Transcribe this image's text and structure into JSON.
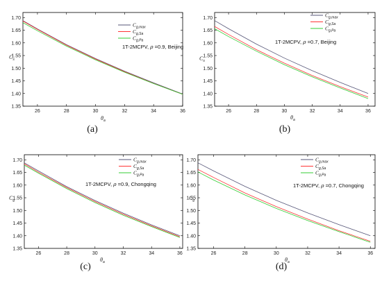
{
  "chart_data": [
    {
      "type": "line",
      "panel_label": "(a)",
      "annotation": {
        "prefix": "1T-2MCPV, ",
        "rho": "ρ",
        "rest": " =0.9, Beijing"
      },
      "xlabel": {
        "main": "θ",
        "sub": "a"
      },
      "ylabel": {
        "main": "C",
        "sub": "s"
      },
      "xlim": [
        25,
        36
      ],
      "ylim": [
        1.35,
        1.72
      ],
      "xticks": [
        26,
        28,
        30,
        32,
        34,
        36
      ],
      "yticks": [
        1.35,
        1.4,
        1.45,
        1.5,
        1.55,
        1.6,
        1.65,
        1.7
      ],
      "x": [
        25,
        26,
        28,
        30,
        32,
        34,
        36
      ],
      "series": [
        {
          "name_main": "C",
          "name_sub": "g,max",
          "color": "#555577",
          "values": [
            1.688,
            1.655,
            1.593,
            1.538,
            1.488,
            1.442,
            1.398
          ]
        },
        {
          "name_main": "C",
          "name_sub": "g,Sa",
          "color": "#ff3333",
          "values": [
            1.686,
            1.653,
            1.591,
            1.536,
            1.486,
            1.44,
            1.397
          ]
        },
        {
          "name_main": "C",
          "name_sub": "g,Pa",
          "color": "#33cc33",
          "values": [
            1.68,
            1.648,
            1.587,
            1.533,
            1.484,
            1.439,
            1.397
          ]
        }
      ]
    },
    {
      "type": "line",
      "panel_label": "(b)",
      "annotation": {
        "prefix": "1T-2MCPV, ",
        "rho": "ρ",
        "rest": " =0.7, Beijing"
      },
      "xlabel": {
        "main": "θ",
        "sub": "a"
      },
      "ylabel": {
        "main": "C",
        "sub": "s"
      },
      "xlim": [
        25,
        36.5
      ],
      "ylim": [
        1.35,
        1.72
      ],
      "xticks": [
        26,
        28,
        30,
        32,
        34,
        36
      ],
      "yticks": [
        1.35,
        1.4,
        1.45,
        1.5,
        1.55,
        1.6,
        1.65,
        1.7
      ],
      "x": [
        25,
        26,
        28,
        30,
        32,
        34,
        36
      ],
      "series": [
        {
          "name_main": "C",
          "name_sub": "g,max",
          "color": "#555577",
          "values": [
            1.688,
            1.656,
            1.595,
            1.54,
            1.49,
            1.444,
            1.4
          ]
        },
        {
          "name_main": "C",
          "name_sub": "g,Sa",
          "color": "#ff3333",
          "values": [
            1.665,
            1.633,
            1.573,
            1.52,
            1.471,
            1.427,
            1.386
          ]
        },
        {
          "name_main": "C",
          "name_sub": "g,Pa",
          "color": "#33cc33",
          "values": [
            1.656,
            1.625,
            1.567,
            1.514,
            1.466,
            1.422,
            1.38
          ]
        }
      ]
    },
    {
      "type": "line",
      "panel_label": "(c)",
      "annotation": {
        "prefix": "1T-2MCPV, ",
        "rho": "ρ",
        "rest": " =0.9, Chongqing"
      },
      "xlabel": {
        "main": "θ",
        "sub": "a"
      },
      "ylabel": {
        "main": "C",
        "sub": "g"
      },
      "xlim": [
        25,
        36.2
      ],
      "ylim": [
        1.35,
        1.72
      ],
      "xticks": [
        26,
        28,
        30,
        32,
        34,
        36
      ],
      "yticks": [
        1.35,
        1.4,
        1.45,
        1.5,
        1.55,
        1.6,
        1.65,
        1.7
      ],
      "x": [
        25,
        26,
        28,
        30,
        32,
        34,
        36
      ],
      "series": [
        {
          "name_main": "C",
          "name_sub": "g,max",
          "color": "#555577",
          "values": [
            1.688,
            1.656,
            1.594,
            1.539,
            1.489,
            1.443,
            1.4
          ]
        },
        {
          "name_main": "C",
          "name_sub": "g,Sa",
          "color": "#ff3333",
          "values": [
            1.684,
            1.651,
            1.59,
            1.535,
            1.485,
            1.439,
            1.396
          ]
        },
        {
          "name_main": "C",
          "name_sub": "g,Pa",
          "color": "#33cc33",
          "values": [
            1.679,
            1.647,
            1.586,
            1.531,
            1.481,
            1.436,
            1.393
          ]
        }
      ]
    },
    {
      "type": "line",
      "panel_label": "(d)",
      "annotation": {
        "prefix": "1T-2MCPV, ",
        "rho": "ρ",
        "rest": " =0.7, Chongqing"
      },
      "xlabel": {
        "main": "θ",
        "sub": "a"
      },
      "ylabel": {
        "main": "C",
        "sub": "g"
      },
      "xlim": [
        25,
        36.3
      ],
      "ylim": [
        1.35,
        1.72
      ],
      "xticks": [
        26,
        28,
        30,
        32,
        34,
        36
      ],
      "yticks": [
        1.35,
        1.4,
        1.45,
        1.5,
        1.55,
        1.6,
        1.65,
        1.7
      ],
      "x": [
        25,
        26,
        28,
        30,
        32,
        34,
        36
      ],
      "series": [
        {
          "name_main": "C",
          "name_sub": "g,max",
          "color": "#555577",
          "values": [
            1.688,
            1.656,
            1.595,
            1.54,
            1.49,
            1.444,
            1.4
          ]
        },
        {
          "name_main": "C",
          "name_sub": "g,Sa",
          "color": "#ff3333",
          "values": [
            1.662,
            1.63,
            1.569,
            1.515,
            1.466,
            1.42,
            1.378
          ]
        },
        {
          "name_main": "C",
          "name_sub": "g,Pa",
          "color": "#33cc33",
          "values": [
            1.652,
            1.62,
            1.561,
            1.508,
            1.46,
            1.416,
            1.374
          ]
        }
      ]
    }
  ]
}
